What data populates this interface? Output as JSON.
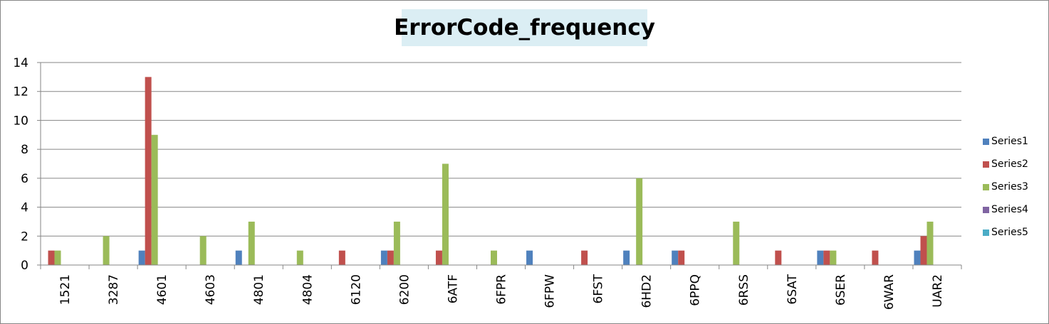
{
  "chart_data": {
    "type": "bar",
    "title": "ErrorCode_frequency",
    "xlabel": "",
    "ylabel": "",
    "ylim": [
      0,
      14
    ],
    "yticks": [
      0,
      2,
      4,
      6,
      8,
      10,
      12,
      14
    ],
    "grid": true,
    "legend_position": "right",
    "categories": [
      "1521",
      "3287",
      "4601",
      "4603",
      "4801",
      "4804",
      "6120",
      "6200",
      "6ATF",
      "6FPR",
      "6FPW",
      "6FST",
      "6HD2",
      "6PPQ",
      "6RSS",
      "6SAT",
      "6SER",
      "6WAR",
      "UAR2"
    ],
    "series": [
      {
        "name": "Series1",
        "color": "#4f81bd",
        "values": [
          0,
          0,
          1,
          0,
          1,
          0,
          0,
          1,
          0,
          0,
          1,
          0,
          1,
          1,
          0,
          0,
          1,
          0,
          1
        ]
      },
      {
        "name": "Series2",
        "color": "#c0504d",
        "values": [
          1,
          0,
          13,
          0,
          0,
          0,
          1,
          1,
          1,
          0,
          0,
          1,
          0,
          1,
          0,
          1,
          1,
          1,
          2
        ]
      },
      {
        "name": "Series3",
        "color": "#9bbb59",
        "values": [
          1,
          2,
          9,
          2,
          3,
          1,
          0,
          3,
          7,
          1,
          0,
          0,
          6,
          0,
          3,
          0,
          1,
          0,
          3
        ]
      },
      {
        "name": "Series4",
        "color": "#8064a2",
        "values": [
          0,
          0,
          0,
          0,
          0,
          0,
          0,
          0,
          0,
          0,
          0,
          0,
          0,
          0,
          0,
          0,
          0,
          0,
          0
        ]
      },
      {
        "name": "Series5",
        "color": "#4bacc6",
        "values": [
          0,
          0,
          0,
          0,
          0,
          0,
          0,
          0,
          0,
          0,
          0,
          0,
          0,
          0,
          0,
          0,
          0,
          0,
          0
        ]
      }
    ]
  }
}
